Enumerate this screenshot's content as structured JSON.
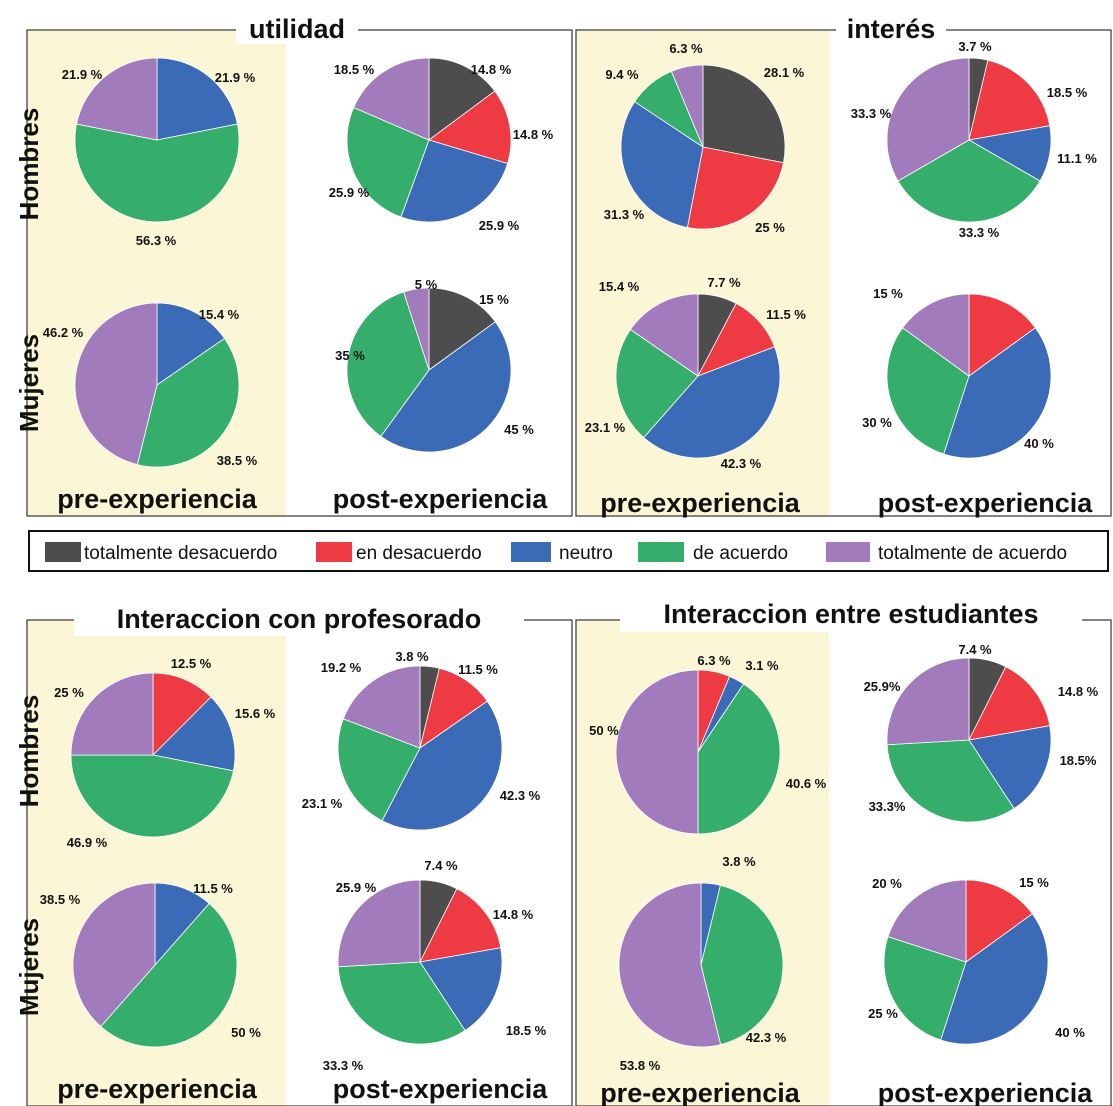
{
  "legend": {
    "items": [
      {
        "label": "totalmente desacuerdo",
        "color": "#4d4d4d"
      },
      {
        "label": "en desacuerdo",
        "color": "#ee3a42"
      },
      {
        "label": "neutro",
        "color": "#3b6bb6"
      },
      {
        "label": "de acuerdo",
        "color": "#35ad6b"
      },
      {
        "label": "totalmente de acuerdo",
        "color": "#a17bbb"
      }
    ]
  },
  "row_labels": {
    "men": "Hombres",
    "women": "Mujeres"
  },
  "column_labels": {
    "pre": "pre-experiencia",
    "post": "post-experiencia"
  },
  "chart_data": [
    {
      "panel": "utilidad",
      "title": "utilidad",
      "group": "Hombres",
      "phase": "pre-experiencia",
      "type": "pie",
      "categories": [
        "totalmente desacuerdo",
        "en desacuerdo",
        "neutro",
        "de acuerdo",
        "totalmente de acuerdo"
      ],
      "values": [
        0,
        0,
        21.9,
        56.3,
        21.9
      ],
      "labels": [
        "",
        "",
        "21.9 %",
        "56.3 %",
        "21.9 %"
      ]
    },
    {
      "panel": "utilidad",
      "title": "utilidad",
      "group": "Hombres",
      "phase": "post-experiencia",
      "type": "pie",
      "categories": [
        "totalmente desacuerdo",
        "en desacuerdo",
        "neutro",
        "de acuerdo",
        "totalmente de acuerdo"
      ],
      "values": [
        14.8,
        14.8,
        25.9,
        25.9,
        18.5
      ],
      "labels": [
        "14.8 %",
        "14.8 %",
        "25.9 %",
        "25.9 %",
        "18.5 %"
      ]
    },
    {
      "panel": "utilidad",
      "title": "utilidad",
      "group": "Mujeres",
      "phase": "pre-experiencia",
      "type": "pie",
      "categories": [
        "totalmente desacuerdo",
        "en desacuerdo",
        "neutro",
        "de acuerdo",
        "totalmente de acuerdo"
      ],
      "values": [
        0,
        0,
        15.4,
        38.5,
        46.2
      ],
      "labels": [
        "",
        "",
        "15.4 %",
        "38.5 %",
        "46.2 %"
      ]
    },
    {
      "panel": "utilidad",
      "title": "utilidad",
      "group": "Mujeres",
      "phase": "post-experiencia",
      "type": "pie",
      "categories": [
        "totalmente desacuerdo",
        "en desacuerdo",
        "neutro",
        "de acuerdo",
        "totalmente de acuerdo"
      ],
      "values": [
        15,
        0,
        45,
        35,
        5
      ],
      "labels": [
        "15 %",
        "",
        "45 %",
        "35 %",
        "5 %"
      ]
    },
    {
      "panel": "interes",
      "title": "interés",
      "group": "Hombres",
      "phase": "pre-experiencia",
      "type": "pie",
      "categories": [
        "totalmente desacuerdo",
        "en desacuerdo",
        "neutro",
        "de acuerdo",
        "totalmente de acuerdo"
      ],
      "values": [
        28.1,
        25,
        31.3,
        9.4,
        6.3
      ],
      "labels": [
        "28.1 %",
        "25 %",
        "31.3 %",
        "9.4 %",
        "6.3 %"
      ]
    },
    {
      "panel": "interes",
      "title": "interés",
      "group": "Hombres",
      "phase": "post-experiencia",
      "type": "pie",
      "categories": [
        "totalmente desacuerdo",
        "en desacuerdo",
        "neutro",
        "de acuerdo",
        "totalmente de acuerdo"
      ],
      "values": [
        3.7,
        18.5,
        11.1,
        33.3,
        33.3
      ],
      "labels": [
        "3.7 %",
        "18.5 %",
        "11.1 %",
        "33.3 %",
        "33.3 %"
      ]
    },
    {
      "panel": "interes",
      "title": "interés",
      "group": "Mujeres",
      "phase": "pre-experiencia",
      "type": "pie",
      "categories": [
        "totalmente desacuerdo",
        "en desacuerdo",
        "neutro",
        "de acuerdo",
        "totalmente de acuerdo"
      ],
      "values": [
        7.7,
        11.5,
        42.3,
        23.1,
        15.4
      ],
      "labels": [
        "7.7 %",
        "11.5 %",
        "42.3 %",
        "23.1 %",
        "15.4 %"
      ]
    },
    {
      "panel": "interes",
      "title": "interés",
      "group": "Mujeres",
      "phase": "post-experiencia",
      "type": "pie",
      "categories": [
        "totalmente desacuerdo",
        "en desacuerdo",
        "neutro",
        "de acuerdo",
        "totalmente de acuerdo"
      ],
      "values": [
        0,
        15,
        40,
        30,
        15
      ],
      "labels": [
        "",
        "15 %",
        "40 %",
        "30 %",
        "15 %"
      ]
    },
    {
      "panel": "profesorado",
      "title": "Interaccion con profesorado",
      "group": "Hombres",
      "phase": "pre-experiencia",
      "type": "pie",
      "categories": [
        "totalmente desacuerdo",
        "en desacuerdo",
        "neutro",
        "de acuerdo",
        "totalmente de acuerdo"
      ],
      "values": [
        0,
        12.5,
        15.6,
        46.9,
        25
      ],
      "labels": [
        "",
        "12.5 %",
        "15.6 %",
        "46.9 %",
        "25 %"
      ]
    },
    {
      "panel": "profesorado",
      "title": "Interaccion con profesorado",
      "group": "Hombres",
      "phase": "post-experiencia",
      "type": "pie",
      "categories": [
        "totalmente desacuerdo",
        "en desacuerdo",
        "neutro",
        "de acuerdo",
        "totalmente de acuerdo"
      ],
      "values": [
        3.8,
        11.5,
        42.3,
        23.1,
        19.2
      ],
      "labels": [
        "3.8 %",
        "11.5 %",
        "42.3 %",
        "23.1 %",
        "19.2 %"
      ]
    },
    {
      "panel": "profesorado",
      "title": "Interaccion con profesorado",
      "group": "Mujeres",
      "phase": "pre-experiencia",
      "type": "pie",
      "categories": [
        "totalmente desacuerdo",
        "en desacuerdo",
        "neutro",
        "de acuerdo",
        "totalmente de acuerdo"
      ],
      "values": [
        0,
        0,
        11.5,
        50,
        38.5
      ],
      "labels": [
        "",
        "",
        "11.5 %",
        "50 %",
        "38.5 %"
      ]
    },
    {
      "panel": "profesorado",
      "title": "Interaccion con profesorado",
      "group": "Mujeres",
      "phase": "post-experiencia",
      "type": "pie",
      "categories": [
        "totalmente desacuerdo",
        "en desacuerdo",
        "neutro",
        "de acuerdo",
        "totalmente de acuerdo"
      ],
      "values": [
        7.4,
        14.8,
        18.5,
        33.3,
        25.9
      ],
      "labels": [
        "7.4 %",
        "14.8 %",
        "18.5 %",
        "33.3 %",
        "25.9 %"
      ]
    },
    {
      "panel": "estudiantes",
      "title": "Interaccion entre estudiantes",
      "group": "Hombres",
      "phase": "pre-experiencia",
      "type": "pie",
      "categories": [
        "totalmente desacuerdo",
        "en desacuerdo",
        "neutro",
        "de acuerdo",
        "totalmente de acuerdo"
      ],
      "values": [
        0,
        6.3,
        3.1,
        40.6,
        50
      ],
      "labels": [
        "",
        "6.3 %",
        "3.1 %",
        "40.6 %",
        "50 %"
      ]
    },
    {
      "panel": "estudiantes",
      "title": "Interaccion entre estudiantes",
      "group": "Hombres",
      "phase": "post-experiencia",
      "type": "pie",
      "categories": [
        "totalmente desacuerdo",
        "en desacuerdo",
        "neutro",
        "de acuerdo",
        "totalmente de acuerdo"
      ],
      "values": [
        7.4,
        14.8,
        18.5,
        33.3,
        25.9
      ],
      "labels": [
        "7.4 %",
        "14.8 %",
        "18.5%",
        "33.3%",
        "25.9%"
      ]
    },
    {
      "panel": "estudiantes",
      "title": "Interaccion entre estudiantes",
      "group": "Mujeres",
      "phase": "pre-experiencia",
      "type": "pie",
      "categories": [
        "totalmente desacuerdo",
        "en desacuerdo",
        "neutro",
        "de acuerdo",
        "totalmente de acuerdo"
      ],
      "values": [
        0,
        0,
        3.8,
        42.3,
        53.8
      ],
      "labels": [
        "",
        "",
        "3.8 %",
        "42.3 %",
        "53.8 %"
      ]
    },
    {
      "panel": "estudiantes",
      "title": "Interaccion entre estudiantes",
      "group": "Mujeres",
      "phase": "post-experiencia",
      "type": "pie",
      "categories": [
        "totalmente desacuerdo",
        "en desacuerdo",
        "neutro",
        "de acuerdo",
        "totalmente de acuerdo"
      ],
      "values": [
        0,
        15,
        40,
        25,
        20
      ],
      "labels": [
        "",
        "15 %",
        "40 %",
        "25 %",
        "20 %"
      ]
    }
  ]
}
